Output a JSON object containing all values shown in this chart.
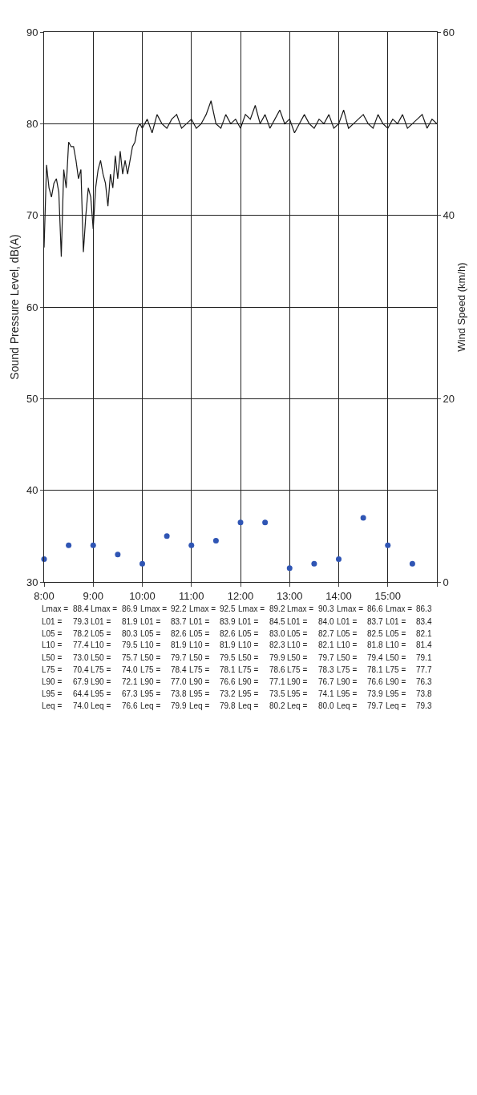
{
  "chart_data": {
    "type": "line",
    "xlim": [
      8,
      16
    ],
    "xticks": [
      {
        "value": 8,
        "label": "8:00"
      },
      {
        "value": 9,
        "label": "9:00"
      },
      {
        "value": 10,
        "label": "10:00"
      },
      {
        "value": 11,
        "label": "11:00"
      },
      {
        "value": 12,
        "label": "12:00"
      },
      {
        "value": 13,
        "label": "13:00"
      },
      {
        "value": 14,
        "label": "14:00"
      },
      {
        "value": 15,
        "label": "15:00"
      },
      {
        "value": 16,
        "label": null
      }
    ],
    "ylim": [
      30,
      90
    ],
    "yticks": [
      30,
      40,
      50,
      60,
      70,
      80,
      90
    ],
    "y2lim": [
      0,
      60
    ],
    "y2ticks": [
      0,
      20,
      40,
      60
    ],
    "ylabel": "Sound Pressure Level, dB(A)",
    "y2label": "Wind Speed (km/h)",
    "grid": true,
    "series": [
      {
        "color": "#1a1a1a",
        "marker": "none",
        "x": [
          8.0,
          8.05,
          8.1,
          8.15,
          8.2,
          8.25,
          8.3,
          8.35,
          8.4,
          8.45,
          8.5,
          8.55,
          8.6,
          8.65,
          8.7,
          8.75,
          8.8,
          8.85,
          8.9,
          8.95,
          9.0,
          9.05,
          9.1,
          9.15,
          9.2,
          9.25,
          9.3,
          9.35,
          9.4,
          9.45,
          9.5,
          9.55,
          9.6,
          9.65,
          9.7,
          9.75,
          9.8,
          9.85,
          9.9,
          9.95,
          10.0,
          10.1,
          10.2,
          10.3,
          10.4,
          10.5,
          10.6,
          10.7,
          10.8,
          10.9,
          11.0,
          11.1,
          11.2,
          11.3,
          11.4,
          11.5,
          11.6,
          11.7,
          11.8,
          11.9,
          12.0,
          12.1,
          12.2,
          12.3,
          12.4,
          12.5,
          12.6,
          12.7,
          12.8,
          12.9,
          13.0,
          13.1,
          13.2,
          13.3,
          13.4,
          13.5,
          13.6,
          13.7,
          13.8,
          13.9,
          14.0,
          14.1,
          14.2,
          14.3,
          14.4,
          14.5,
          14.6,
          14.7,
          14.8,
          14.9,
          15.0,
          15.1,
          15.2,
          15.3,
          15.4,
          15.5,
          15.6,
          15.7,
          15.8,
          15.9,
          16.0
        ],
        "values": [
          66.5,
          75.5,
          73,
          72,
          73.5,
          74,
          72.5,
          65.5,
          75,
          73,
          78,
          77.5,
          77.5,
          76,
          74,
          75,
          66,
          70,
          73,
          72,
          68.5,
          73,
          75,
          76,
          74.5,
          73.5,
          71,
          74.5,
          73,
          76.5,
          74,
          77,
          74.5,
          76,
          74.5,
          76,
          77.5,
          78,
          79.5,
          80,
          79.5,
          80.5,
          79,
          81,
          80,
          79.5,
          80.5,
          81,
          79.5,
          80,
          80.5,
          79.5,
          80,
          81,
          82.5,
          80,
          79.5,
          81,
          80,
          80.5,
          79.5,
          81,
          80.5,
          82,
          80,
          81,
          79.5,
          80.5,
          81.5,
          80,
          80.5,
          79,
          80,
          81,
          80,
          79.5,
          80.5,
          80,
          81,
          79.5,
          80,
          81.5,
          79.5,
          80,
          80.5,
          81,
          80,
          79.5,
          81,
          80,
          79.5,
          80.5,
          80,
          81,
          79.5,
          80,
          80.5,
          81,
          79.5,
          80.5,
          80
        ]
      },
      {
        "type": "scatter",
        "axis": "y2",
        "color": "#2f55b4",
        "marker": "circle",
        "x": [
          8.0,
          8.5,
          9.0,
          9.5,
          10.0,
          10.5,
          11.0,
          11.5,
          12.0,
          12.5,
          13.0,
          13.5,
          14.0,
          14.5,
          15.0,
          15.5
        ],
        "values": [
          2.5,
          4,
          4,
          3,
          2,
          5,
          4,
          4.5,
          6.5,
          6.5,
          1.5,
          2,
          2.5,
          7,
          4,
          2
        ]
      }
    ],
    "annotations": [
      "Lmax =",
      "88.4",
      "L01 =",
      "79.3",
      "L05 =",
      "78.2",
      "L10 =",
      "77.4",
      "L50 =",
      "73.0",
      "L75 =",
      "70.4",
      "L90 =",
      "67.9",
      "L95 =",
      "64.4",
      "Leq =",
      "74.0",
      "Lmax =",
      "86.9",
      "L01 =",
      "81.9",
      "L05 =",
      "80.3",
      "L10 =",
      "79.5",
      "L50 =",
      "75.7",
      "L75 =",
      "74.0",
      "L90 =",
      "72.1",
      "L95 =",
      "67.3",
      "Leq =",
      "76.6",
      "Lmax =",
      "92.2",
      "L01 =",
      "83.7",
      "L05 =",
      "82.6",
      "L10 =",
      "81.9",
      "L50 =",
      "79.7",
      "L75 =",
      "78.4",
      "L90 =",
      "77.0",
      "L95 =",
      "73.8",
      "Leq =",
      "79.9",
      "Lmax =",
      "92.5",
      "L01 =",
      "83.9",
      "L05 =",
      "82.6",
      "L10 =",
      "81.9",
      "L50 =",
      "79.5",
      "L75 =",
      "78.1",
      "L90 =",
      "76.6",
      "L95 =",
      "73.2",
      "Leq =",
      "79.8",
      "Lmax =",
      "89.2",
      "L01 =",
      "84.5",
      "L05 =",
      "83.0",
      "L10 =",
      "82.3",
      "L50 =",
      "79.9",
      "L75 =",
      "78.6",
      "L90 =",
      "77.1",
      "L95 =",
      "73.5",
      "Leq =",
      "80.2",
      "Lmax =",
      "90.3",
      "L01 =",
      "84.0",
      "L05 =",
      "82.7",
      "L10 =",
      "82.1",
      "L50 =",
      "79.7",
      "L75 =",
      "78.3",
      "L90 =",
      "76.7",
      "L95 =",
      "74.1",
      "Leq =",
      "80.0",
      "Lmax =",
      "86.6",
      "L01 =",
      "83.7",
      "L05 =",
      "82.5",
      "L10 =",
      "81.8",
      "L50 =",
      "79.4",
      "L75 =",
      "78.1",
      "L90 =",
      "76.6",
      "L95 =",
      "73.9",
      "Leq =",
      "79.7",
      "Lmax =",
      "86.3",
      "L01 =",
      "83.4",
      "L05 =",
      "82.1",
      "L10 =",
      "81.4",
      "L50 =",
      "79.1",
      "L75 =",
      "77.7",
      "L90 =",
      "76.3",
      "L95 =",
      "73.8",
      "Leq =",
      "79.3"
    ]
  }
}
